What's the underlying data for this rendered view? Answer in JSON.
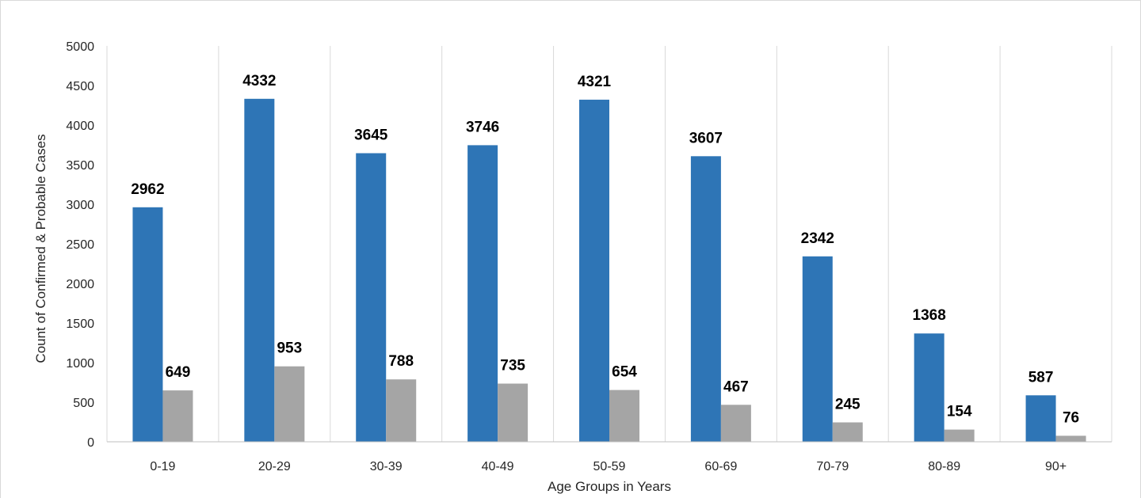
{
  "chart_data": {
    "type": "bar",
    "title": "",
    "xlabel": "Age Groups in Years",
    "ylabel": "Count of Confirmed & Probable Cases",
    "categories": [
      "0-19",
      "20-29",
      "30-39",
      "40-49",
      "50-59",
      "60-69",
      "70-79",
      "80-89",
      "90+"
    ],
    "series": [
      {
        "values": [
          2962,
          4332,
          3645,
          3746,
          4321,
          3607,
          2342,
          1368,
          587
        ],
        "color": "#2e75b6"
      },
      {
        "values": [
          649,
          953,
          788,
          735,
          654,
          467,
          245,
          154,
          76
        ],
        "color": "#a5a5a5"
      }
    ],
    "ylim": [
      0,
      5000
    ],
    "yticks": [
      "0",
      "500",
      "1000",
      "1500",
      "2000",
      "2500",
      "3000",
      "3500",
      "4000",
      "4500",
      "5000"
    ],
    "grid": "vertical",
    "legend": "none"
  }
}
